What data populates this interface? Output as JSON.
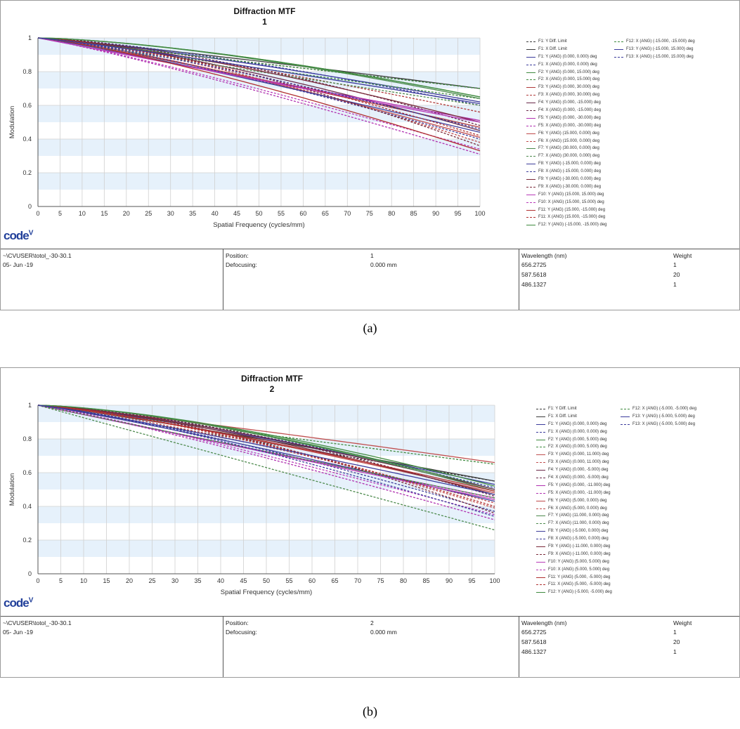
{
  "figures": [
    {
      "caption": "(a)",
      "logo_text": "code",
      "logo_mark": "V",
      "file_name": "~\\CVUSER\\totol_-30-30.1",
      "date": "05- Jun -19",
      "position_label": "Position:",
      "position_value": "1",
      "defocusing_label": "Defocusing:",
      "defocusing_value": "0.000 mm",
      "wavelength_header": "Wavelength (nm)",
      "weight_header": "Weight",
      "wavelengths": [
        {
          "nm": "656.2725",
          "weight": "1"
        },
        {
          "nm": "587.5618",
          "weight": "20"
        },
        {
          "nm": "486.1327",
          "weight": "1"
        }
      ]
    },
    {
      "caption": "(b)",
      "logo_text": "code",
      "logo_mark": "V",
      "file_name": "~\\CVUSER\\totol_-30-30.1",
      "date": "05- Jun -19",
      "position_label": "Position:",
      "position_value": "2",
      "defocusing_label": "Defocusing:",
      "defocusing_value": "0.000 mm",
      "wavelength_header": "Wavelength (nm)",
      "weight_header": "Weight",
      "wavelengths": [
        {
          "nm": "656.2725",
          "weight": "1"
        },
        {
          "nm": "587.5618",
          "weight": "20"
        },
        {
          "nm": "486.1327",
          "weight": "1"
        }
      ]
    }
  ],
  "chart_data": [
    {
      "type": "line",
      "title": "Diffraction MTF",
      "subtitle": "1",
      "xlabel": "Spatial Frequency (cycles/mm)",
      "ylabel": "Modulation",
      "xlim": [
        0,
        100
      ],
      "ylim": [
        0,
        1
      ],
      "x_ticks": [
        0,
        5,
        10,
        15,
        20,
        25,
        30,
        35,
        40,
        45,
        50,
        55,
        60,
        65,
        70,
        75,
        80,
        85,
        90,
        95,
        100
      ],
      "y_ticks": [
        0,
        0.2,
        0.4,
        0.6,
        0.8,
        1
      ],
      "grid": true,
      "legend_position": "right",
      "series": [
        {
          "name": "F1: Y Diff. Limit",
          "color": "#3c3c3c",
          "dash": true,
          "end": 0.7
        },
        {
          "name": "F1: X Diff. Limit",
          "color": "#3c3c3c",
          "dash": false,
          "end": 0.7
        },
        {
          "name": "F1: Y (ANG) (0.000, 0.000) deg",
          "color": "#3b3b9c",
          "dash": false,
          "end": 0.62
        },
        {
          "name": "F1: X (ANG) (0.000, 0.000) deg",
          "color": "#3b3b9c",
          "dash": true,
          "end": 0.6
        },
        {
          "name": "F2: Y (ANG) (0.000, 15.000) deg",
          "color": "#3f8a3f",
          "dash": false,
          "end": 0.65
        },
        {
          "name": "F2: X (ANG) (0.000, 15.000) deg",
          "color": "#3f8a3f",
          "dash": true,
          "end": 0.64
        },
        {
          "name": "F3: Y (ANG) (0.000, 30.000) deg",
          "color": "#b03a3a",
          "dash": false,
          "end": 0.47
        },
        {
          "name": "F3: X (ANG) (0.000, 30.000) deg",
          "color": "#b03a3a",
          "dash": true,
          "end": 0.56
        },
        {
          "name": "F4: Y (ANG) (0.000, -15.000) deg",
          "color": "#6a2a4a",
          "dash": false,
          "end": 0.45
        },
        {
          "name": "F4: X (ANG) (0.000, -15.000) deg",
          "color": "#6a2a4a",
          "dash": true,
          "end": 0.48
        },
        {
          "name": "F5: Y (ANG) (0.000, -30.000) deg",
          "color": "#b030b0",
          "dash": false,
          "end": 0.51
        },
        {
          "name": "F5: X (ANG) (0.000, -30.000) deg",
          "color": "#b030b0",
          "dash": true,
          "end": 0.31
        },
        {
          "name": "F6: Y (ANG) (15.000, 0.000) deg",
          "color": "#c04a4a",
          "dash": false,
          "end": 0.41
        },
        {
          "name": "F6: X (ANG) (15.000, 0.000) deg",
          "color": "#c04a4a",
          "dash": true,
          "end": 0.38
        },
        {
          "name": "F7: Y (ANG) (30.000, 0.000) deg",
          "color": "#4d8a4d",
          "dash": false,
          "end": 0.64
        },
        {
          "name": "F7: X (ANG) (30.000, 0.000) deg",
          "color": "#4d8a4d",
          "dash": true,
          "end": 0.6
        },
        {
          "name": "F8: Y (ANG) (-15.000, 0.000) deg",
          "color": "#3d3d9a",
          "dash": false,
          "end": 0.44
        },
        {
          "name": "F8: X (ANG) (-15.000, 0.000) deg",
          "color": "#3d3d9a",
          "dash": true,
          "end": 0.4
        },
        {
          "name": "F9: Y (ANG) (-30.000, 0.000) deg",
          "color": "#7a2a3a",
          "dash": false,
          "end": 0.5
        },
        {
          "name": "F9: X (ANG) (-30.000, 0.000) deg",
          "color": "#7a2a3a",
          "dash": true,
          "end": 0.36
        },
        {
          "name": "F10: Y (ANG) (15.000, 15.000) deg",
          "color": "#b83ab8",
          "dash": false,
          "end": 0.5
        },
        {
          "name": "F10: X (ANG) (15.000, 15.000) deg",
          "color": "#b83ab8",
          "dash": true,
          "end": 0.34
        },
        {
          "name": "F11: Y (ANG) (15.000, -15.000) deg",
          "color": "#b03030",
          "dash": false,
          "end": 0.33
        },
        {
          "name": "F11: X (ANG) (15.000, -15.000) deg",
          "color": "#b03030",
          "dash": true,
          "end": 0.42
        },
        {
          "name": "F12: Y (ANG) (-15.000, -15.000) deg",
          "color": "#3f8a3f",
          "dash": false,
          "end": 0.65
        },
        {
          "name": "F12: X (ANG) (-15.000, -15.000) deg",
          "color": "#3f8a3f",
          "dash": true,
          "end": 0.7
        },
        {
          "name": "F13: Y (ANG) (-15.000, 15.000) deg",
          "color": "#3b3b9c",
          "dash": false,
          "end": 0.61
        },
        {
          "name": "F13: X (ANG) (-15.000, 15.000) deg",
          "color": "#3b3b9c",
          "dash": true,
          "end": 0.46
        }
      ]
    },
    {
      "type": "line",
      "title": "Diffraction MTF",
      "subtitle": "2",
      "xlabel": "Spatial Frequency (cycles/mm)",
      "ylabel": "Modulation",
      "xlim": [
        0,
        100
      ],
      "ylim": [
        0,
        1
      ],
      "x_ticks": [
        0,
        5,
        10,
        15,
        20,
        25,
        30,
        35,
        40,
        45,
        50,
        55,
        60,
        65,
        70,
        75,
        80,
        85,
        90,
        95,
        100
      ],
      "y_ticks": [
        0,
        0.2,
        0.4,
        0.6,
        0.8,
        1
      ],
      "grid": true,
      "legend_position": "right",
      "series": [
        {
          "name": "F1: Y Diff. Limit",
          "color": "#3c3c3c",
          "dash": true,
          "end": 0.55
        },
        {
          "name": "F1: X Diff. Limit",
          "color": "#3c3c3c",
          "dash": false,
          "end": 0.55
        },
        {
          "name": "F1: Y (ANG) (0.000, 0.000) deg",
          "color": "#3b3b9c",
          "dash": false,
          "end": 0.53
        },
        {
          "name": "F1: X (ANG) (0.000, 0.000) deg",
          "color": "#3b3b9c",
          "dash": true,
          "end": 0.51
        },
        {
          "name": "F2: Y (ANG) (0.000, 5.000) deg",
          "color": "#3f8a3f",
          "dash": false,
          "end": 0.5
        },
        {
          "name": "F2: X (ANG) (0.000, 5.000) deg",
          "color": "#3f8a3f",
          "dash": true,
          "end": 0.65
        },
        {
          "name": "F3: Y (ANG) (0.000, 11.000) deg",
          "color": "#c05050",
          "dash": false,
          "end": 0.66
        },
        {
          "name": "F3: X (ANG) (0.000, 11.000) deg",
          "color": "#c05050",
          "dash": true,
          "end": 0.42
        },
        {
          "name": "F4: Y (ANG) (0.000, -5.000) deg",
          "color": "#6a2a4a",
          "dash": false,
          "end": 0.5
        },
        {
          "name": "F4: X (ANG) (0.000, -5.000) deg",
          "color": "#6a2a4a",
          "dash": true,
          "end": 0.46
        },
        {
          "name": "F5: Y (ANG) (0.000, -11.000) deg",
          "color": "#b030b0",
          "dash": false,
          "end": 0.45
        },
        {
          "name": "F5: X (ANG) (0.000, -11.000) deg",
          "color": "#b030b0",
          "dash": true,
          "end": 0.32
        },
        {
          "name": "F6: Y (ANG) (5.000, 0.000) deg",
          "color": "#c04a4a",
          "dash": false,
          "end": 0.48
        },
        {
          "name": "F6: X (ANG) (5.000, 0.000) deg",
          "color": "#c04a4a",
          "dash": true,
          "end": 0.39
        },
        {
          "name": "F7: Y (ANG) (11.000, 0.000) deg",
          "color": "#4d8a4d",
          "dash": false,
          "end": 0.49
        },
        {
          "name": "F7: X (ANG) (11.000, 0.000) deg",
          "color": "#4d8a4d",
          "dash": true,
          "end": 0.26
        },
        {
          "name": "F8: Y (ANG) (-5.000, 0.000) deg",
          "color": "#3d3d9a",
          "dash": false,
          "end": 0.43
        },
        {
          "name": "F8: X (ANG) (-5.000, 0.000) deg",
          "color": "#3d3d9a",
          "dash": true,
          "end": 0.37
        },
        {
          "name": "F9: Y (ANG) (-11.000, 0.000) deg",
          "color": "#7a2a3a",
          "dash": false,
          "end": 0.47
        },
        {
          "name": "F9: X (ANG) (-11.000, 0.000) deg",
          "color": "#7a2a3a",
          "dash": true,
          "end": 0.36
        },
        {
          "name": "F10: Y (ANG) (5.000, 5.000) deg",
          "color": "#b83ab8",
          "dash": false,
          "end": 0.44
        },
        {
          "name": "F10: X (ANG) (5.000, 5.000) deg",
          "color": "#b83ab8",
          "dash": true,
          "end": 0.35
        },
        {
          "name": "F11: Y (ANG) (5.000, -5.000) deg",
          "color": "#b03030",
          "dash": false,
          "end": 0.49
        },
        {
          "name": "F11: X (ANG) (5.000, -5.000) deg",
          "color": "#b03030",
          "dash": true,
          "end": 0.4
        },
        {
          "name": "F12: Y (ANG) (-5.000, -5.000) deg",
          "color": "#3f8a3f",
          "dash": false,
          "end": 0.52
        },
        {
          "name": "F12: X (ANG) (-5.000, -5.000) deg",
          "color": "#3f8a3f",
          "dash": true,
          "end": 0.45
        },
        {
          "name": "F13: Y (ANG) (-5.000, 5.000) deg",
          "color": "#3b3b9c",
          "dash": false,
          "end": 0.47
        },
        {
          "name": "F13: X (ANG) (-5.000, 5.000) deg",
          "color": "#3b3b9c",
          "dash": true,
          "end": 0.34
        }
      ]
    }
  ]
}
